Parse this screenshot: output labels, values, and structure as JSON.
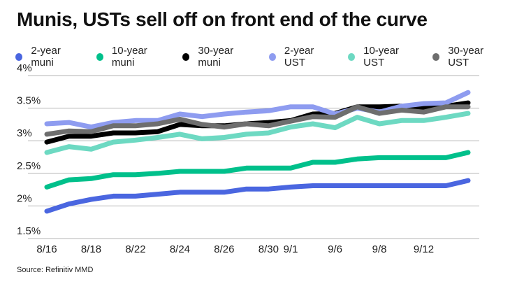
{
  "chart_data": {
    "type": "line",
    "title": "Munis, USTs sell off on front end of the curve",
    "xlabel": "",
    "ylabel": "",
    "ylim": [
      1.5,
      4
    ],
    "yticks": [
      1.5,
      2,
      2.5,
      3,
      3.5,
      4
    ],
    "ytick_labels": [
      "1.5%",
      "2%",
      "2.5%",
      "3%",
      "3.5%",
      "4%"
    ],
    "grid": true,
    "legend_position": "top",
    "categories": [
      "8/16",
      "",
      "8/18",
      "",
      "8/22",
      "",
      "8/24",
      "",
      "8/26",
      "",
      "8/30",
      "9/1",
      "",
      "9/6",
      "",
      "9/8",
      "",
      "9/12",
      "",
      ""
    ],
    "series": [
      {
        "name": "2-year muni",
        "color": "#4a66e0",
        "values": [
          1.92,
          2.03,
          2.1,
          2.15,
          2.15,
          2.18,
          2.21,
          2.21,
          2.21,
          2.26,
          2.26,
          2.29,
          2.31,
          2.31,
          2.31,
          2.31,
          2.31,
          2.31,
          2.31,
          2.39
        ]
      },
      {
        "name": "10-year muni",
        "color": "#00c08b",
        "values": [
          2.29,
          2.4,
          2.42,
          2.48,
          2.48,
          2.5,
          2.53,
          2.53,
          2.53,
          2.58,
          2.58,
          2.58,
          2.67,
          2.67,
          2.72,
          2.74,
          2.74,
          2.74,
          2.74,
          2.82
        ]
      },
      {
        "name": "30-year muni",
        "color": "#000000",
        "values": [
          2.98,
          3.07,
          3.07,
          3.12,
          3.12,
          3.14,
          3.25,
          3.23,
          3.23,
          3.26,
          3.28,
          3.31,
          3.41,
          3.42,
          3.52,
          3.52,
          3.53,
          3.5,
          3.53,
          3.58
        ]
      },
      {
        "name": "2-year UST",
        "color": "#8e9cf0",
        "values": [
          3.26,
          3.28,
          3.21,
          3.28,
          3.31,
          3.31,
          3.41,
          3.37,
          3.41,
          3.44,
          3.46,
          3.52,
          3.52,
          3.41,
          3.5,
          3.44,
          3.53,
          3.57,
          3.58,
          3.74
        ]
      },
      {
        "name": "10-year UST",
        "color": "#6dd9c2",
        "values": [
          2.82,
          2.91,
          2.87,
          2.98,
          3.01,
          3.05,
          3.1,
          3.03,
          3.05,
          3.1,
          3.12,
          3.21,
          3.26,
          3.2,
          3.36,
          3.26,
          3.31,
          3.31,
          3.36,
          3.42
        ]
      },
      {
        "name": "30-year UST",
        "color": "#6e6e6e",
        "values": [
          3.1,
          3.15,
          3.14,
          3.23,
          3.23,
          3.26,
          3.33,
          3.25,
          3.21,
          3.26,
          3.23,
          3.3,
          3.37,
          3.36,
          3.52,
          3.42,
          3.47,
          3.44,
          3.52,
          3.52
        ]
      }
    ],
    "source": "Source: Refinitiv MMD"
  }
}
